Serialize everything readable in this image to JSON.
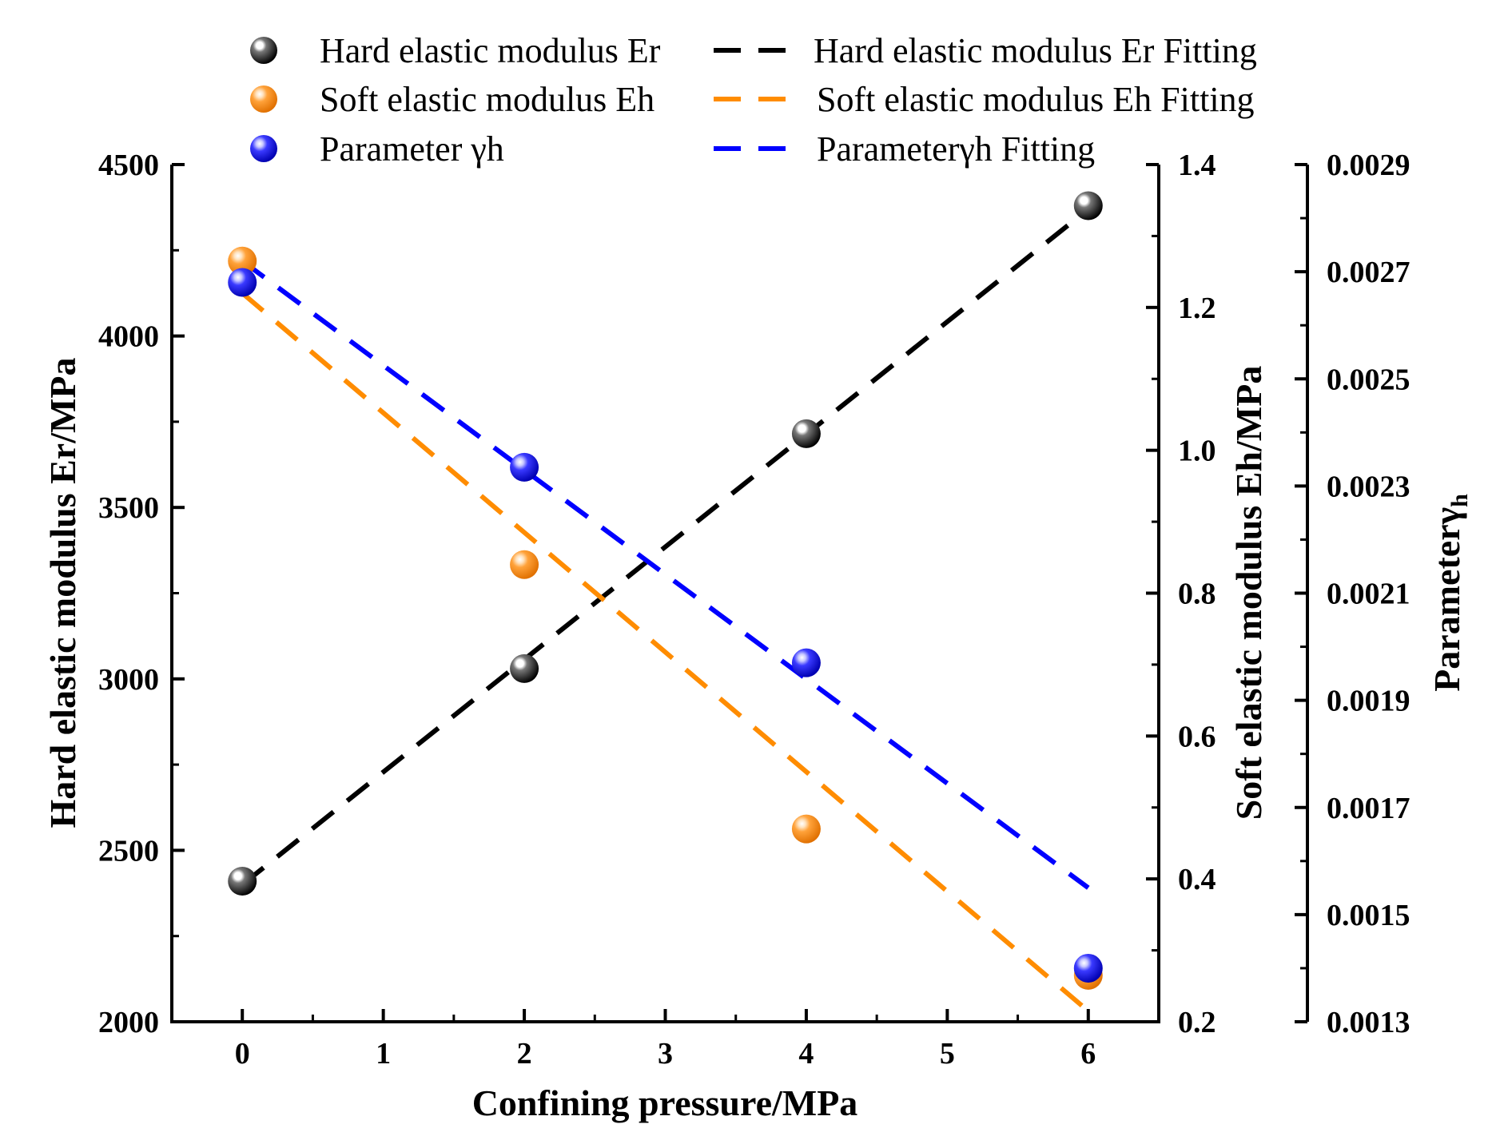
{
  "chart_data": {
    "type": "scatter",
    "x": [
      0,
      2,
      4,
      6
    ],
    "xlabel": "Confining pressure/MPa",
    "xlim": [
      -0.5,
      6.5
    ],
    "xticks": [
      0,
      1,
      2,
      3,
      4,
      5,
      6
    ],
    "axes": {
      "left": {
        "label": "Hard elastic modulus Er/MPa",
        "range": [
          2000,
          4500
        ],
        "ticks": [
          "2000",
          "2500",
          "3000",
          "3500",
          "4000",
          "4500"
        ]
      },
      "right1": {
        "label": "Soft elastic modulus Eh/MPa",
        "range": [
          0.2,
          1.4
        ],
        "ticks": [
          "0.2",
          "0.4",
          "0.6",
          "0.8",
          "1.0",
          "1.2",
          "1.4"
        ]
      },
      "right2": {
        "label_main": "Parameterγ",
        "label_sub": "h",
        "range": [
          0.0013,
          0.0029
        ],
        "ticks": [
          "0.0013",
          "0.0015",
          "0.0017",
          "0.0019",
          "0.0021",
          "0.0023",
          "0.0025",
          "0.0027",
          "0.0029"
        ]
      }
    },
    "series": [
      {
        "name": "Hard elastic modulus Er",
        "fit_name": "Hard elastic modulus Er Fitting",
        "axis": "left",
        "color": "#000000",
        "values": [
          2410,
          3030,
          3715,
          4380
        ],
        "fit": [
          2400,
          4370
        ]
      },
      {
        "name": "Soft elastic modulus Eh",
        "fit_name": "Soft elastic modulus Eh Fitting",
        "axis": "right1",
        "color": "#ff8c00",
        "values": [
          1.265,
          0.84,
          0.47,
          0.265
        ],
        "fit": [
          1.22,
          0.215
        ]
      },
      {
        "name": "Parameter γh",
        "fit_name": "Parameterγh Fitting",
        "axis": "right2",
        "color": "#0000ff",
        "values": [
          0.00268,
          0.002335,
          0.00197,
          0.0014
        ],
        "fit": [
          0.00272,
          0.00155
        ]
      }
    ]
  }
}
